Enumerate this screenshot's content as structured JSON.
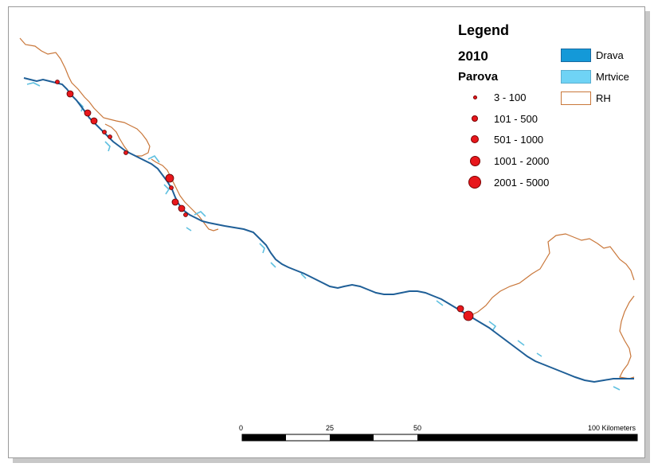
{
  "legend": {
    "title": "Legend",
    "year": "2010",
    "group_title": "Parova",
    "classes": [
      {
        "label": "3 - 100",
        "name": "class-3-100"
      },
      {
        "label": "101 - 500",
        "name": "class-101-500"
      },
      {
        "label": "501 - 1000",
        "name": "class-501-1000"
      },
      {
        "label": "1001 - 2000",
        "name": "class-1001-2000"
      },
      {
        "label": "2001 - 5000",
        "name": "class-2001-5000"
      }
    ],
    "layers": [
      {
        "label": "Drava",
        "fill": "#1499d8",
        "stroke": "#1a6aa0"
      },
      {
        "label": "Mrtvice",
        "fill": "#6fd3f5",
        "stroke": "#5aaed0"
      },
      {
        "label": "RH",
        "fill": "#ffffff",
        "stroke": "#c9773a"
      }
    ]
  },
  "scale_bar": {
    "labels": [
      "0",
      "25",
      "50",
      "100 Kilometers"
    ]
  },
  "colors": {
    "river": "#1f5f97",
    "oxbow": "#5fc0e0",
    "border": "#c9773a",
    "points": "#e8171c"
  }
}
